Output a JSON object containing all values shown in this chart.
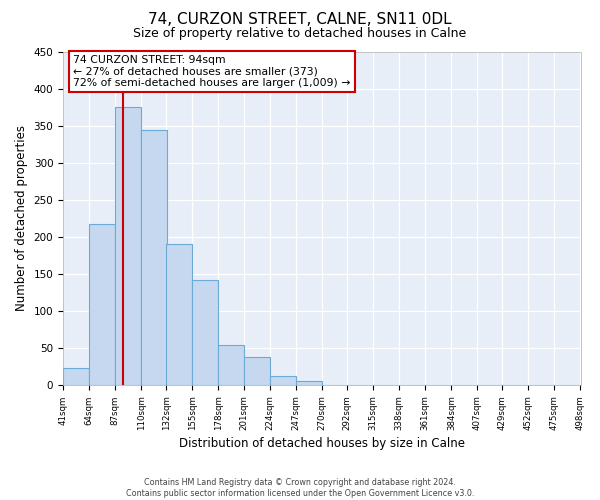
{
  "title": "74, CURZON STREET, CALNE, SN11 0DL",
  "subtitle": "Size of property relative to detached houses in Calne",
  "xlabel": "Distribution of detached houses by size in Calne",
  "ylabel": "Number of detached properties",
  "bar_left_edges": [
    41,
    64,
    87,
    110,
    132,
    155,
    178,
    201,
    224,
    247,
    270,
    292,
    315,
    338,
    361,
    384,
    407,
    429,
    452,
    475
  ],
  "bar_heights": [
    24,
    217,
    375,
    344,
    190,
    142,
    55,
    39,
    13,
    6,
    0,
    0,
    1,
    0,
    0,
    0,
    0,
    0,
    0,
    1
  ],
  "bin_width": 23,
  "bar_color": "#c5d8f0",
  "bar_edge_color": "#6aaad4",
  "property_size": 94,
  "vline_color": "#cc0000",
  "annotation_line1": "74 CURZON STREET: 94sqm",
  "annotation_line2": "← 27% of detached houses are smaller (373)",
  "annotation_line3": "72% of semi-detached houses are larger (1,009) →",
  "annotation_box_color": "#ffffff",
  "annotation_box_edge_color": "#cc0000",
  "xlim_left": 41,
  "xlim_right": 498,
  "ylim_top": 450,
  "ylim_bottom": 0,
  "tick_labels": [
    "41sqm",
    "64sqm",
    "87sqm",
    "110sqm",
    "132sqm",
    "155sqm",
    "178sqm",
    "201sqm",
    "224sqm",
    "247sqm",
    "270sqm",
    "292sqm",
    "315sqm",
    "338sqm",
    "361sqm",
    "384sqm",
    "407sqm",
    "429sqm",
    "452sqm",
    "475sqm",
    "498sqm"
  ],
  "tick_positions": [
    41,
    64,
    87,
    110,
    132,
    155,
    178,
    201,
    224,
    247,
    270,
    292,
    315,
    338,
    361,
    384,
    407,
    429,
    452,
    475,
    498
  ],
  "ytick_positions": [
    0,
    50,
    100,
    150,
    200,
    250,
    300,
    350,
    400,
    450
  ],
  "footer_line1": "Contains HM Land Registry data © Crown copyright and database right 2024.",
  "footer_line2": "Contains public sector information licensed under the Open Government Licence v3.0.",
  "figure_bg": "#ffffff",
  "axes_bg": "#e8eef7",
  "grid_color": "#ffffff",
  "title_fontsize": 11,
  "subtitle_fontsize": 9
}
